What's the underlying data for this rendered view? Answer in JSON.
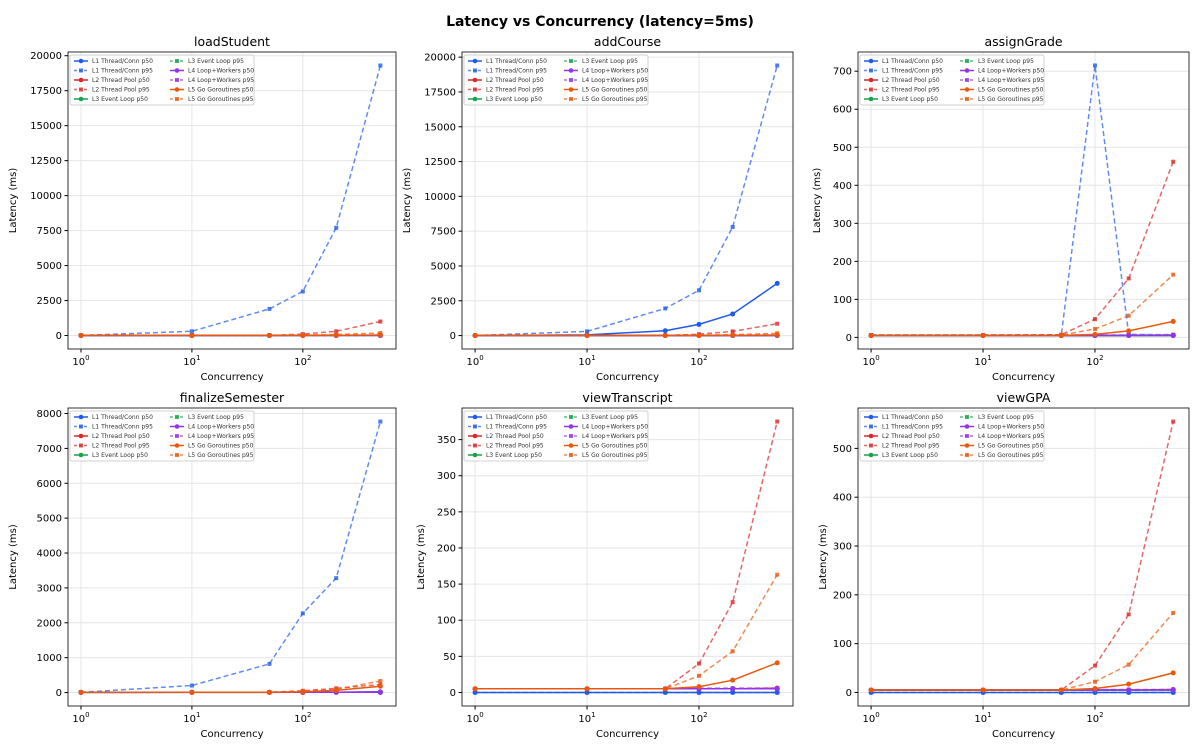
{
  "suptitle": "Latency vs Concurrency (latency=5ms)",
  "chart_data": {
    "type": "line",
    "x": [
      1,
      10,
      50,
      100,
      200,
      500
    ],
    "xscale": "log",
    "xlabel": "Concurrency",
    "ylabel": "Latency (ms)",
    "xticks": [
      "10^0",
      "10^1",
      "10^2"
    ],
    "grid": true,
    "legend_position": "top-left",
    "series_styles": [
      {
        "name": "L1 Thread/Conn p50",
        "color": "#1f5bea",
        "dash": false
      },
      {
        "name": "L1 Thread/Conn p95",
        "color": "#1f5bea",
        "dash": true
      },
      {
        "name": "L2 Thread Pool p50",
        "color": "#dc2626",
        "dash": false
      },
      {
        "name": "L2 Thread Pool p95",
        "color": "#dc2626",
        "dash": true
      },
      {
        "name": "L3 Event Loop p50",
        "color": "#16a34a",
        "dash": false
      },
      {
        "name": "L3 Event Loop p95",
        "color": "#16a34a",
        "dash": true
      },
      {
        "name": "L4 Loop+Workers p50",
        "color": "#9333ea",
        "dash": false
      },
      {
        "name": "L4 Loop+Workers p95",
        "color": "#9333ea",
        "dash": true
      },
      {
        "name": "L5 Go Goroutines p50",
        "color": "#ea580c",
        "dash": false
      },
      {
        "name": "L5 Go Goroutines p95",
        "color": "#ea580c",
        "dash": true
      }
    ],
    "charts": [
      {
        "title": "loadStudent",
        "yticks": [
          0,
          2500,
          5000,
          7500,
          10000,
          12500,
          15000,
          17500,
          20000
        ],
        "series": [
          [
            1,
            2,
            3,
            5,
            10,
            20
          ],
          [
            5,
            300,
            1900,
            3150,
            7700,
            19300
          ],
          [
            5,
            5,
            5,
            5,
            6,
            8
          ],
          [
            6,
            7,
            8,
            100,
            300,
            1000
          ],
          [
            5,
            5,
            5,
            5,
            5,
            6
          ],
          [
            6,
            6,
            6,
            7,
            8,
            10
          ],
          [
            5,
            5,
            5,
            5,
            5,
            6
          ],
          [
            6,
            6,
            6,
            7,
            8,
            10
          ],
          [
            5,
            5,
            5,
            8,
            17,
            40
          ],
          [
            6,
            6,
            7,
            25,
            70,
            180
          ]
        ]
      },
      {
        "title": "addCourse",
        "yticks": [
          0,
          2500,
          5000,
          7500,
          10000,
          12500,
          15000,
          17500,
          20000
        ],
        "series": [
          [
            5,
            50,
            350,
            800,
            1550,
            3750
          ],
          [
            5,
            300,
            1950,
            3250,
            7800,
            19400
          ],
          [
            5,
            5,
            5,
            5,
            6,
            8
          ],
          [
            6,
            7,
            8,
            100,
            300,
            850
          ],
          [
            5,
            5,
            5,
            5,
            5,
            6
          ],
          [
            6,
            6,
            6,
            7,
            8,
            10
          ],
          [
            5,
            5,
            5,
            5,
            5,
            6
          ],
          [
            6,
            6,
            6,
            7,
            8,
            10
          ],
          [
            5,
            5,
            5,
            8,
            17,
            40
          ],
          [
            6,
            6,
            7,
            25,
            60,
            165
          ]
        ]
      },
      {
        "title": "assignGrade",
        "yticks": [
          0,
          100,
          200,
          300,
          400,
          500,
          600,
          700
        ],
        "series": [
          [
            5,
            5,
            5,
            5,
            5,
            5
          ],
          [
            6,
            6,
            6,
            715,
            8,
            7
          ],
          [
            5,
            5,
            5,
            5,
            5,
            6
          ],
          [
            6,
            6,
            7,
            48,
            155,
            462
          ],
          [
            5,
            5,
            5,
            5,
            5,
            5
          ],
          [
            6,
            6,
            6,
            6,
            6,
            6
          ],
          [
            5,
            5,
            5,
            5,
            5,
            5
          ],
          [
            6,
            6,
            6,
            6,
            6,
            6
          ],
          [
            5,
            5,
            5,
            8,
            17,
            42
          ],
          [
            5,
            5,
            6,
            22,
            57,
            165
          ]
        ]
      },
      {
        "title": "finalizeSemester",
        "yticks": [
          0,
          1000,
          2000,
          3000,
          4000,
          5000,
          6000,
          7000,
          8000
        ],
        "series": [
          [
            2,
            3,
            4,
            6,
            10,
            20
          ],
          [
            5,
            200,
            820,
            2270,
            3280,
            7770
          ],
          [
            5,
            5,
            5,
            6,
            8,
            12
          ],
          [
            6,
            7,
            8,
            50,
            120,
            230
          ],
          [
            5,
            5,
            5,
            5,
            5,
            6
          ],
          [
            6,
            6,
            6,
            7,
            8,
            10
          ],
          [
            5,
            5,
            5,
            5,
            5,
            6
          ],
          [
            6,
            6,
            6,
            7,
            8,
            10
          ],
          [
            5,
            5,
            5,
            20,
            60,
            180
          ],
          [
            6,
            6,
            7,
            25,
            90,
            330
          ]
        ]
      },
      {
        "title": "viewTranscript",
        "yticks": [
          0,
          50,
          100,
          150,
          200,
          250,
          300,
          350
        ],
        "series": [
          [
            0,
            0,
            0,
            0,
            0,
            0
          ],
          [
            0,
            0,
            0,
            0,
            0,
            0
          ],
          [
            5,
            5,
            5,
            5,
            5,
            6
          ],
          [
            5,
            5,
            5,
            40,
            125,
            375
          ],
          [
            5,
            5,
            5,
            5,
            5,
            5
          ],
          [
            5,
            5,
            5,
            5,
            5,
            5
          ],
          [
            5,
            5,
            5,
            5,
            5,
            5
          ],
          [
            5,
            5,
            5,
            6,
            6,
            6
          ],
          [
            5,
            5,
            5,
            8,
            17,
            41
          ],
          [
            5,
            5,
            5,
            23,
            57,
            163
          ]
        ]
      },
      {
        "title": "viewGPA",
        "yticks": [
          0,
          100,
          200,
          300,
          400,
          500
        ],
        "series": [
          [
            0,
            0,
            0,
            0,
            0,
            0
          ],
          [
            0,
            0,
            0,
            0,
            0,
            0
          ],
          [
            5,
            5,
            5,
            5,
            5,
            6
          ],
          [
            5,
            5,
            5,
            55,
            160,
            555
          ],
          [
            5,
            5,
            5,
            5,
            5,
            5
          ],
          [
            5,
            5,
            5,
            5,
            5,
            5
          ],
          [
            5,
            5,
            5,
            5,
            5,
            5
          ],
          [
            5,
            5,
            5,
            6,
            6,
            6
          ],
          [
            5,
            5,
            5,
            8,
            17,
            40
          ],
          [
            5,
            5,
            5,
            22,
            57,
            163
          ]
        ]
      }
    ]
  }
}
